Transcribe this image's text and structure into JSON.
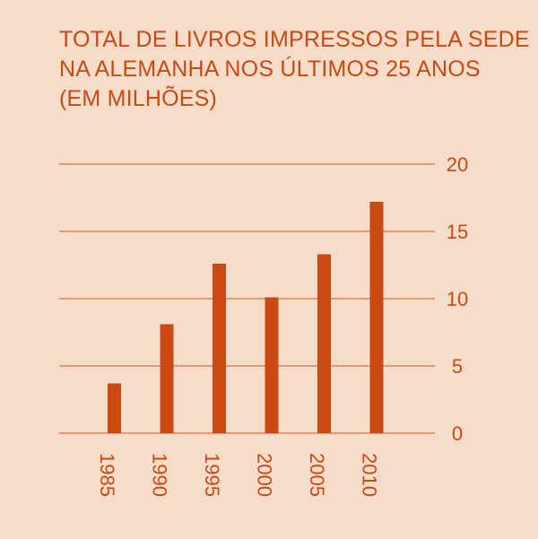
{
  "chart_data": {
    "type": "bar",
    "title": "TOTAL DE LIVROS IMPRESSOS PELA SEDE NA ALEMANHA NOS ÚLTIMOS 25 ANOS (EM MILHÕES)",
    "title_lines": [
      "TOTAL DE LIVROS IMPRESSOS PELA SEDE",
      "NA ALEMANHA NOS ÚLTIMOS 25 ANOS",
      "(EM MILHÕES)"
    ],
    "categories": [
      "1985",
      "1990",
      "1995",
      "2000",
      "2005",
      "2010"
    ],
    "values": [
      3.7,
      8.1,
      12.6,
      10.1,
      13.3,
      17.2
    ],
    "y_ticks": [
      "0",
      "5",
      "10",
      "15",
      "20"
    ],
    "ylim": [
      0,
      20
    ],
    "xlabel": "",
    "ylabel": "",
    "grid": true,
    "y_axis_position": "right",
    "x_labels_rotation": "vertical",
    "colors": {
      "background": "#f8dcca",
      "bar": "#c94a12",
      "text": "#c94a12",
      "grid": "#d4541a"
    }
  }
}
